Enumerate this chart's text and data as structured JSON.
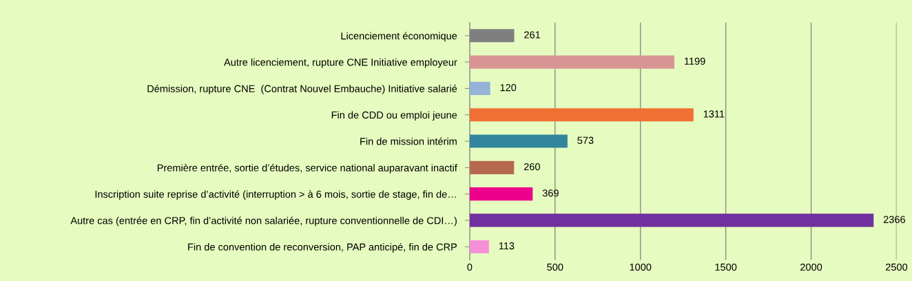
{
  "chart_data": {
    "type": "bar",
    "orientation": "horizontal",
    "categories": [
      "Licenciement économique",
      "Autre licenciement, rupture CNE Initiative employeur",
      "Démission, rupture CNE  (Contrat Nouvel Embauche) Initiative salarié",
      "Fin de CDD ou emploi jeune",
      "Fin de mission intérim",
      "Première entrée, sortie d’études, service national auparavant inactif",
      "Inscription suite reprise d’activité (interruption > à 6 mois, sortie de stage, fin de…",
      "Autre cas (entrée en CRP, fin d’activité non salariée, rupture conventionnelle de CDI…)",
      "Fin de convention de reconversion, PAP anticipé, fin de CRP"
    ],
    "values": [
      261,
      1199,
      120,
      1311,
      573,
      260,
      369,
      2366,
      113
    ],
    "colors": [
      "#7f7f7f",
      "#d99594",
      "#95b3d7",
      "#f07033",
      "#31859c",
      "#b7694f",
      "#ec008c",
      "#7030a0",
      "#f590d8"
    ],
    "xlim": [
      0,
      2500
    ],
    "xticks": [
      0,
      500,
      1000,
      1500,
      2000,
      2500
    ],
    "grid": "x",
    "data_labels": true,
    "legend": false
  }
}
